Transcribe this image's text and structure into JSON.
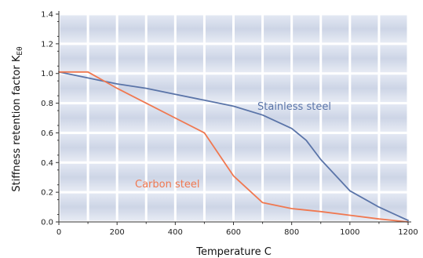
{
  "chart_data": {
    "type": "line",
    "xlabel": "Temperature C",
    "ylabel_main": "Stiffness retention factor  K",
    "ylabel_sub": "Eθ",
    "xlim": [
      0,
      1200
    ],
    "ylim": [
      0,
      1.4
    ],
    "x_ticks": [
      "0",
      "200",
      "400",
      "600",
      "800",
      "1000",
      "1200"
    ],
    "y_ticks": [
      "0.0",
      "0.2",
      "0.4",
      "0.6",
      "0.8",
      "1.0",
      "1.2",
      "1.4"
    ],
    "grid": true,
    "series": [
      {
        "name": "Stainless steel",
        "color": "#5a74a8",
        "points": [
          [
            0,
            1.01
          ],
          [
            100,
            0.97
          ],
          [
            200,
            0.93
          ],
          [
            300,
            0.9
          ],
          [
            400,
            0.86
          ],
          [
            500,
            0.82
          ],
          [
            600,
            0.78
          ],
          [
            700,
            0.72
          ],
          [
            800,
            0.63
          ],
          [
            850,
            0.55
          ],
          [
            900,
            0.42
          ],
          [
            1000,
            0.21
          ],
          [
            1100,
            0.1
          ],
          [
            1200,
            0.01
          ]
        ]
      },
      {
        "name": "Carbon steel",
        "color": "#f07850",
        "points": [
          [
            0,
            1.01
          ],
          [
            100,
            1.01
          ],
          [
            200,
            0.9
          ],
          [
            300,
            0.8
          ],
          [
            400,
            0.7
          ],
          [
            500,
            0.6
          ],
          [
            600,
            0.31
          ],
          [
            700,
            0.13
          ],
          [
            800,
            0.09
          ],
          [
            900,
            0.07
          ],
          [
            1000,
            0.045
          ],
          [
            1100,
            0.02
          ],
          [
            1200,
            0.0
          ]
        ]
      }
    ]
  }
}
